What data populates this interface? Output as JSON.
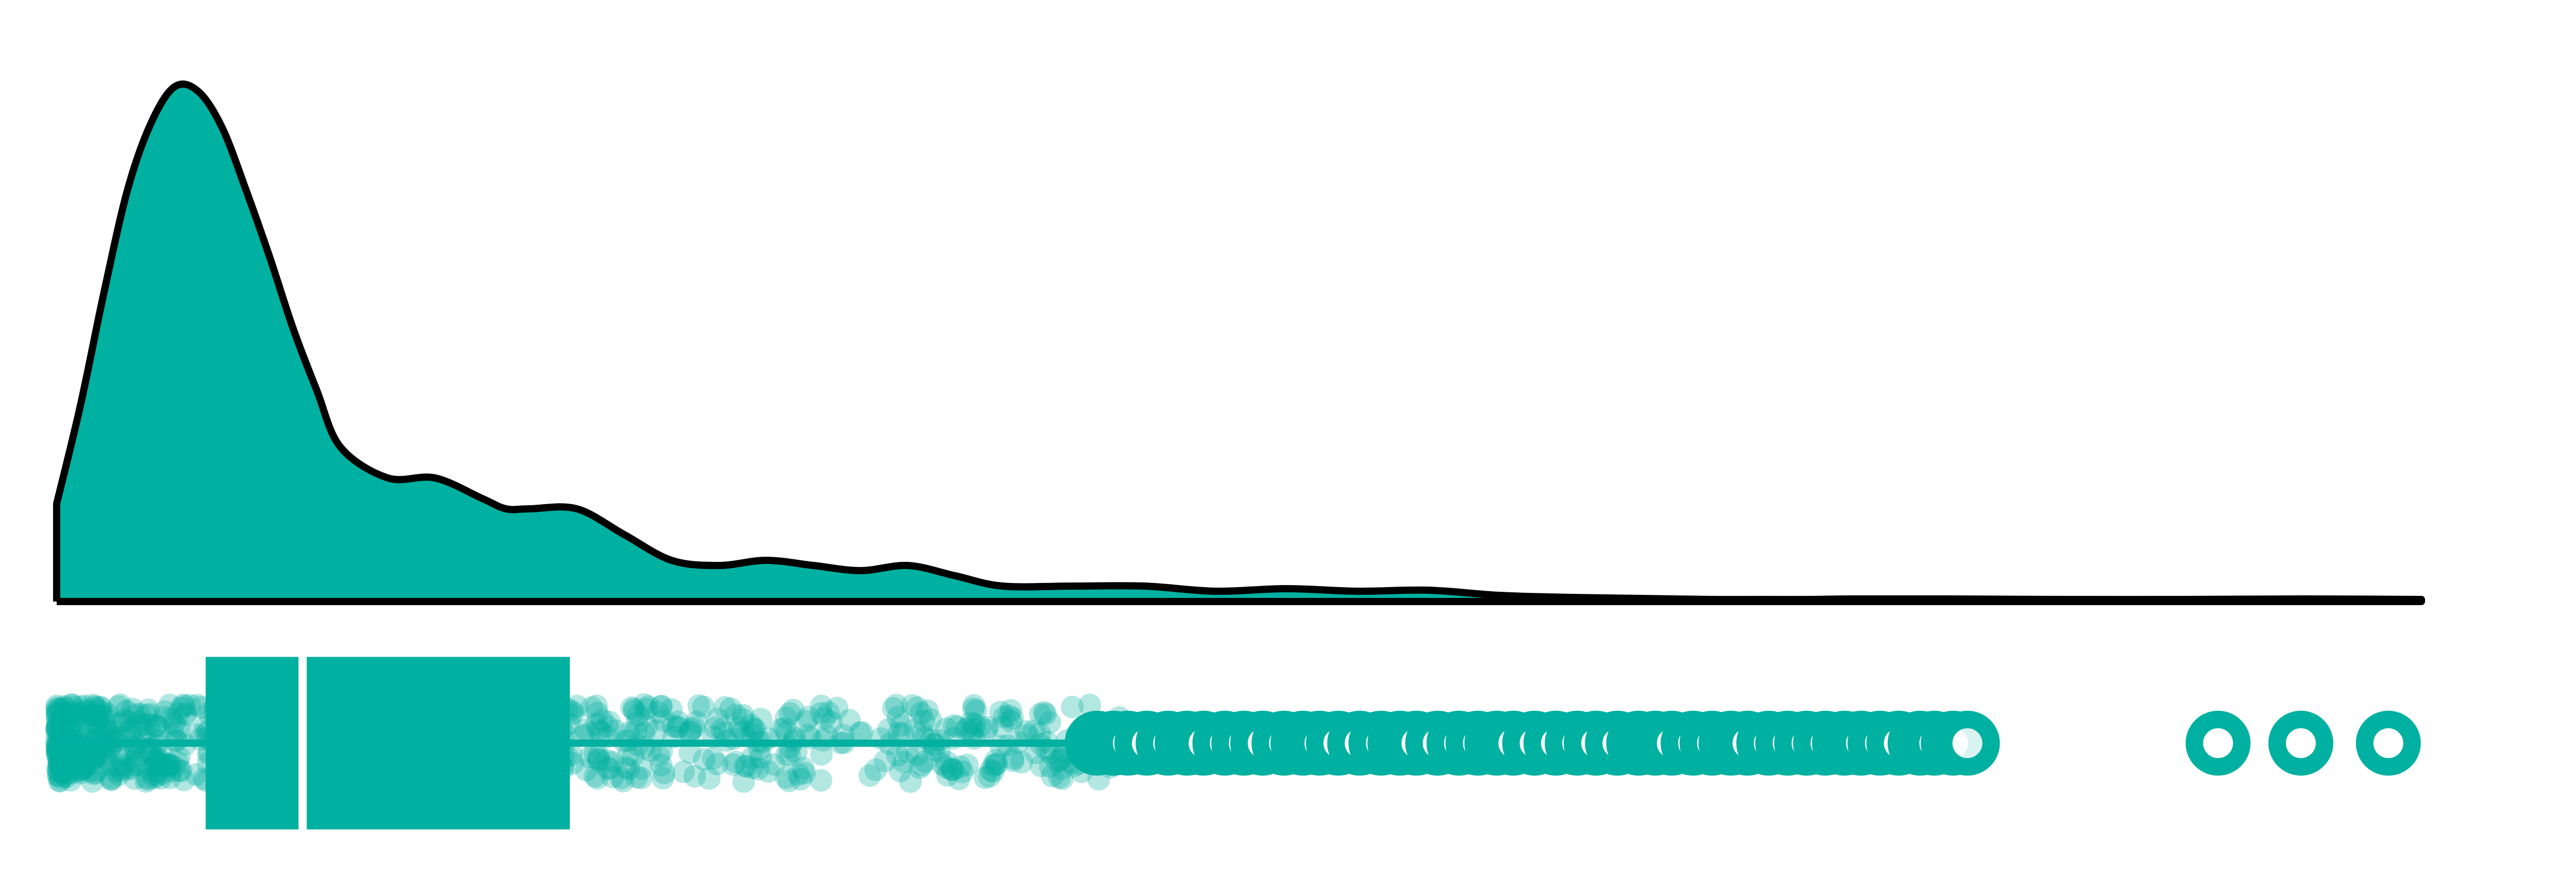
{
  "colors": {
    "accent": "#00b0a0",
    "outline": "#000000",
    "background": "#ffffff"
  },
  "chart_data": {
    "type": "raincloud",
    "title": "",
    "xlabel": "",
    "ylabel": "",
    "grid": false,
    "legend": "none",
    "xlim": [
      0,
      100
    ],
    "density": {
      "x": [
        0,
        1,
        2,
        3,
        4,
        5,
        6,
        7,
        8,
        9,
        10,
        11,
        12,
        14,
        16,
        18,
        19,
        20,
        22,
        24,
        26,
        28,
        30,
        32,
        34,
        36,
        38,
        40,
        43,
        46,
        49,
        52,
        55,
        58,
        61,
        64,
        67,
        70,
        72,
        74,
        76,
        80,
        85,
        90,
        95,
        100
      ],
      "y": [
        0.19,
        0.38,
        0.6,
        0.8,
        0.93,
        1.0,
        0.99,
        0.92,
        0.8,
        0.67,
        0.53,
        0.41,
        0.3,
        0.24,
        0.24,
        0.2,
        0.18,
        0.18,
        0.18,
        0.13,
        0.08,
        0.07,
        0.08,
        0.07,
        0.06,
        0.07,
        0.05,
        0.03,
        0.03,
        0.03,
        0.02,
        0.025,
        0.02,
        0.022,
        0.012,
        0.008,
        0.006,
        0.004,
        0.004,
        0.004,
        0.005,
        0.005,
        0.004,
        0.004,
        0.005,
        0.004
      ]
    },
    "boxplot": {
      "min": 0,
      "q1": 6.3,
      "median": 10.4,
      "q3": 21.7,
      "max": 44
    },
    "outliers": [
      44.0,
      44.7,
      45.3,
      46.1,
      47.0,
      47.8,
      48.5,
      49.4,
      50.2,
      51.0,
      51.9,
      52.7,
      53.4,
      54.2,
      55.1,
      56.0,
      56.8,
      57.5,
      58.4,
      59.3,
      60.1,
      60.9,
      61.6,
      62.5,
      63.4,
      64.3,
      65.1,
      66.0,
      66.9,
      67.6,
      68.3,
      69.2,
      70.0,
      70.8,
      71.5,
      72.4,
      73.2,
      74.0,
      74.8,
      75.6,
      76.3,
      77.1,
      77.9,
      78.8,
      79.4,
      80.2,
      80.8,
      91.4,
      94.9,
      98.6
    ],
    "jitter": {
      "n_points": 900,
      "range": [
        0,
        45
      ],
      "opacity": 0.3
    }
  }
}
